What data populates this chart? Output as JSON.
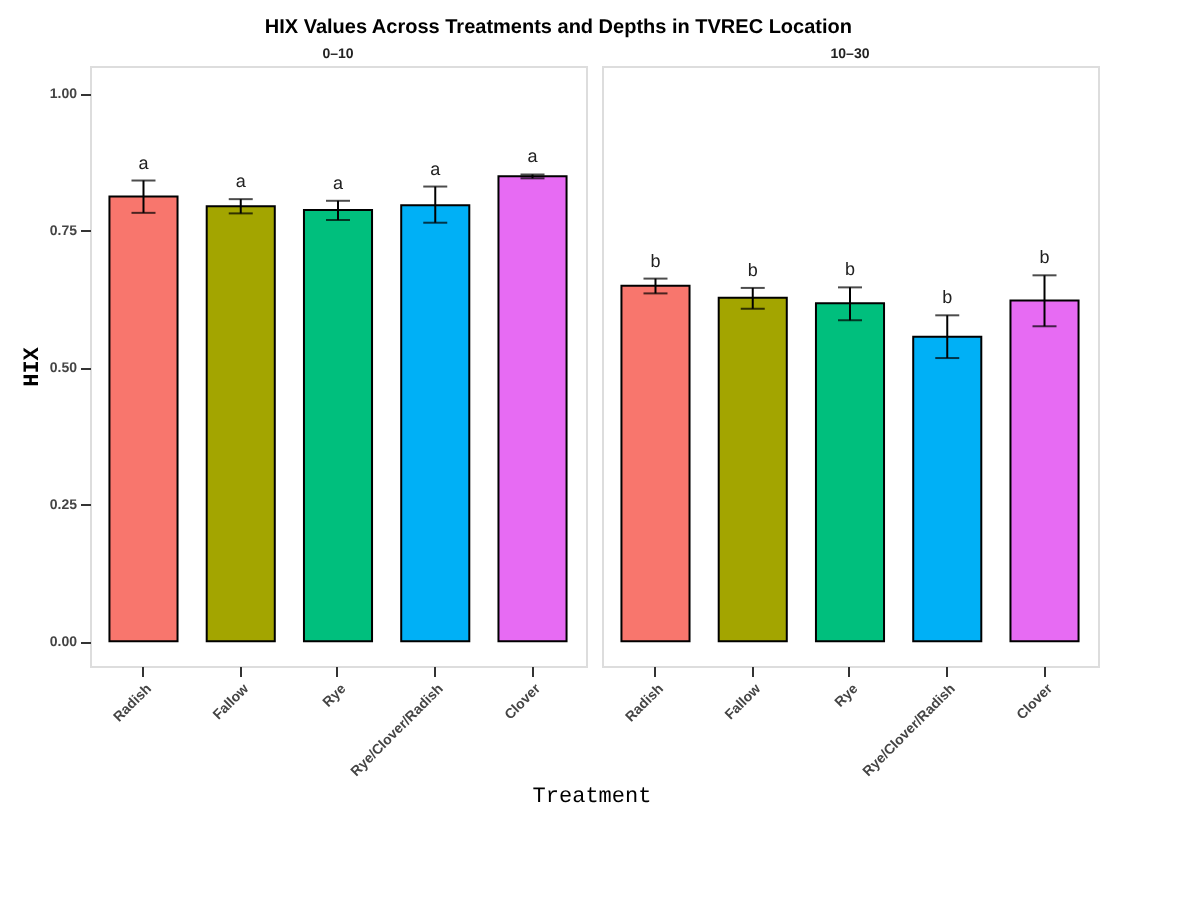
{
  "chart_data": [
    {
      "type": "bar",
      "title": "HIX Values Across Treatments and Depths in TVREC Location",
      "subtitle": "0–10",
      "xlabel": "Treatment",
      "ylabel": "HIX",
      "categories": [
        "Radish",
        "Fallow",
        "Rye",
        "Rye/Clover/Radish",
        "Clover"
      ],
      "values": [
        0.812,
        0.794,
        0.787,
        0.796,
        0.849
      ],
      "errors": [
        [
          0.782,
          0.841
        ],
        [
          0.781,
          0.807
        ],
        [
          0.769,
          0.804
        ],
        [
          0.764,
          0.83
        ],
        [
          0.845,
          0.852
        ]
      ],
      "colors": [
        "#f8766d",
        "#a3a500",
        "#00bf7d",
        "#00b0f6",
        "#e76bf3"
      ],
      "ylim": [
        -0.045,
        1.05
      ],
      "yticks": [
        {
          "value": 0,
          "label": "0.00"
        },
        {
          "value": 0.25,
          "label": "0.25"
        },
        {
          "value": 0.5,
          "label": "0.50"
        },
        {
          "value": 0.75,
          "label": "0.75"
        },
        {
          "value": 1,
          "label": "1.00"
        }
      ],
      "annotations": [
        "a",
        "a",
        "a",
        "a",
        "a"
      ],
      "grid": false,
      "legend": false
    },
    {
      "type": "bar",
      "subtitle": "10–30",
      "categories": [
        "Radish",
        "Fallow",
        "Rye",
        "Rye/Clover/Radish",
        "Clover"
      ],
      "values": [
        0.649,
        0.627,
        0.617,
        0.556,
        0.622
      ],
      "errors": [
        [
          0.635,
          0.662
        ],
        [
          0.607,
          0.645
        ],
        [
          0.586,
          0.646
        ],
        [
          0.517,
          0.595
        ],
        [
          0.575,
          0.668
        ]
      ],
      "colors": [
        "#f8766d",
        "#a3a500",
        "#00bf7d",
        "#00b0f6",
        "#e76bf3"
      ],
      "ylim": [
        -0.045,
        1.05
      ],
      "annotations": [
        "b",
        "b",
        "b",
        "b",
        "b"
      ],
      "grid": false,
      "legend": false,
      "tick_labels": "x"
    }
  ]
}
